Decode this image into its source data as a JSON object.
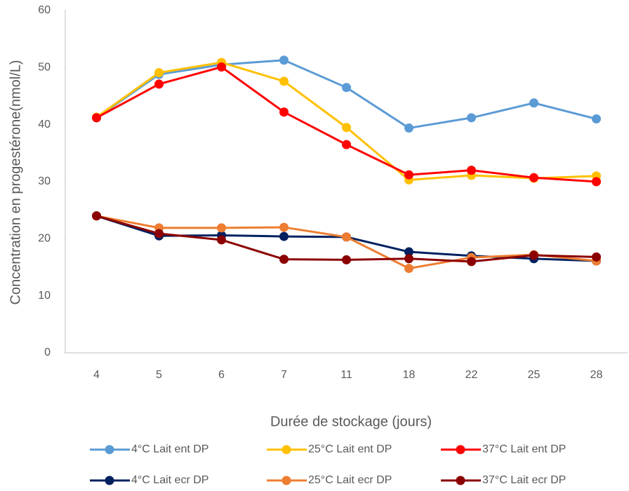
{
  "chart_data": {
    "type": "line",
    "x_label": "Durée de stockage (jours)",
    "y_label": "Concentration en progestérone(nmol/L)",
    "categories": [
      "4",
      "5",
      "6",
      "7",
      "11",
      "18",
      "22",
      "25",
      "28"
    ],
    "ylim": [
      0,
      60
    ],
    "yticks": [
      0,
      10,
      20,
      30,
      40,
      50,
      60
    ],
    "grid": false,
    "legend": "bottom",
    "series": [
      {
        "name": "4°C Lait ent DP",
        "color": "#5b9bd5",
        "values": [
          41.2,
          48.8,
          50.5,
          51.3,
          46.5,
          39.4,
          41.2,
          43.8,
          41
        ]
      },
      {
        "name": "25°C Lait ent DP",
        "color": "#ffc000",
        "values": [
          41.3,
          49.1,
          50.9,
          47.6,
          39.5,
          30.3,
          31.1,
          30.6,
          31
        ]
      },
      {
        "name": "37°C Lait ent DP",
        "color": "#ff0000",
        "values": [
          41.2,
          47.1,
          50.1,
          42.2,
          36.5,
          31.2,
          32,
          30.7,
          30
        ]
      },
      {
        "name": "4°C Lait ecr DP",
        "color": "#002060",
        "values": [
          24,
          20.5,
          20.6,
          20.4,
          20.3,
          17.7,
          17,
          16.5,
          16.1
        ]
      },
      {
        "name": "25°C Lait ecr DP",
        "color": "#ed7d31",
        "values": [
          24,
          21.9,
          21.9,
          22,
          20.3,
          14.8,
          16.7,
          17.2,
          16.1
        ]
      },
      {
        "name": "37°C Lait ecr DP",
        "color": "#8b0000",
        "values": [
          24,
          20.9,
          19.8,
          16.4,
          16.3,
          16.5,
          16,
          17.1,
          16.8
        ]
      }
    ]
  }
}
